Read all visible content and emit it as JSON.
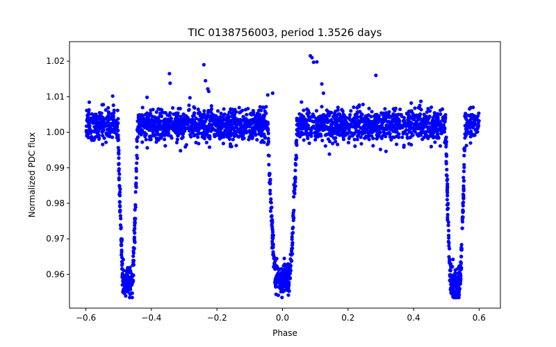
{
  "chart_data": {
    "type": "scatter",
    "title": "TIC 0138756003, period 1.3526 days",
    "xlabel": "Phase",
    "ylabel": "Normalized PDC flux",
    "xlim": [
      -0.65,
      0.665
    ],
    "ylim": [
      0.9505,
      1.0255
    ],
    "xticks": [
      -0.6,
      -0.4,
      -0.2,
      0.0,
      0.2,
      0.4,
      0.6
    ],
    "xtick_labels": [
      "−0.6",
      "−0.4",
      "−0.2",
      "0.0",
      "0.2",
      "0.4",
      "0.6"
    ],
    "yticks": [
      0.96,
      0.97,
      0.98,
      0.99,
      1.0,
      1.01,
      1.02
    ],
    "ytick_labels": [
      "0.96",
      "0.97",
      "0.98",
      "0.99",
      "1.00",
      "1.01",
      "1.02"
    ],
    "marker_color": "#0000ff",
    "series": [
      {
        "name": "flux",
        "baseline": 1.002,
        "scatter": 0.0022,
        "phase_range": [
          -0.6,
          0.6
        ],
        "primary_eclipses": [
          {
            "center": -0.4725,
            "depth": 0.0445,
            "half_width": 0.03
          },
          {
            "center": 0.5275,
            "depth": 0.0445,
            "half_width": 0.03
          }
        ],
        "secondary_eclipse": {
          "center": 0.0,
          "depth": 0.0435,
          "half_width": 0.045
        },
        "outliers": [
          {
            "x": 0.085,
            "y": 1.0215
          },
          {
            "x": 0.09,
            "y": 1.021
          },
          {
            "x": 0.095,
            "y": 1.0197
          },
          {
            "x": 0.105,
            "y": 1.0198
          },
          {
            "x": 0.285,
            "y": 1.016
          },
          {
            "x": -0.345,
            "y": 1.0165
          },
          {
            "x": -0.343,
            "y": 1.0138
          },
          {
            "x": -0.24,
            "y": 1.019
          },
          {
            "x": -0.235,
            "y": 1.0145
          },
          {
            "x": -0.228,
            "y": 1.0122
          },
          {
            "x": -0.225,
            "y": 1.0115
          },
          {
            "x": 0.12,
            "y": 1.0136
          },
          {
            "x": 0.125,
            "y": 1.011
          },
          {
            "x": -0.045,
            "y": 1.0105
          },
          {
            "x": -0.03,
            "y": 1.011
          },
          {
            "x": 0.058,
            "y": 1.0085
          }
        ]
      }
    ]
  }
}
